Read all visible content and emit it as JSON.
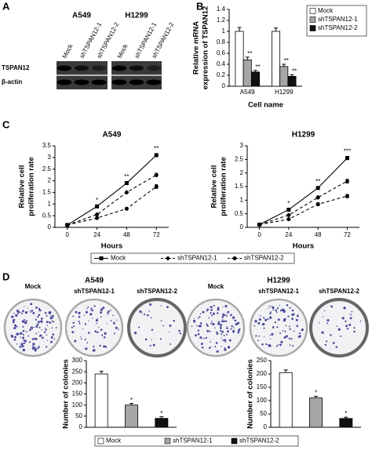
{
  "panel_labels": [
    "A",
    "B",
    "C",
    "D"
  ],
  "blot": {
    "cell_lines": [
      "A549",
      "H1299"
    ],
    "lanes": [
      "Mock",
      "shTSPAN12-1",
      "shTSPAN12-2"
    ],
    "rows": [
      "TSPAN12",
      "β-actin"
    ]
  },
  "colony": {
    "cell_lines": [
      "A549",
      "H1299"
    ],
    "conditions": [
      "Mock",
      "shTSPAN12-1",
      "shTSPAN12-2"
    ]
  },
  "chart_data": [
    {
      "type": "bar",
      "categories": [
        "A549",
        "H1299"
      ],
      "xlabel": "Cell name",
      "ylabel": [
        "Relative mRNA",
        "expression of TSPAN12"
      ],
      "ylim": [
        0,
        1.4
      ],
      "yticks": [
        0,
        0.2,
        0.4,
        0.6,
        0.8,
        1,
        1.2,
        1.4
      ],
      "legend": "right",
      "series": [
        {
          "name": "Mock",
          "color": "#ffffff",
          "values": [
            1.0,
            1.0
          ],
          "errors": [
            0.07,
            0.06
          ]
        },
        {
          "name": "shTSPAN12-1",
          "color": "#a6a6a6",
          "values": [
            0.48,
            0.36
          ],
          "errors": [
            0.05,
            0.04
          ],
          "significance": [
            "**",
            "**"
          ]
        },
        {
          "name": "shTSPAN12-2",
          "color": "#111111",
          "values": [
            0.26,
            0.18
          ],
          "errors": [
            0.03,
            0.03
          ],
          "significance": [
            "**",
            "**"
          ]
        }
      ]
    },
    {
      "type": "line",
      "title": "A549",
      "x": [
        0,
        24,
        48,
        72
      ],
      "xlim": [
        -10,
        82
      ],
      "xticks": [
        0,
        24,
        48,
        72
      ],
      "xlabel": "Hours",
      "ylabel": [
        "Relative cell",
        "proliferation rate"
      ],
      "ylim": [
        0,
        3.5
      ],
      "yticks": [
        0,
        0.5,
        1,
        1.5,
        2,
        2.5,
        3,
        3.5
      ],
      "legend": "bottom",
      "significance": [
        null,
        "*",
        "**",
        "**"
      ],
      "series": [
        {
          "name": "Mock",
          "color": "#000000",
          "dash": "solid",
          "marker": "square",
          "values": [
            0.1,
            0.9,
            1.9,
            3.1
          ],
          "errors": [
            0.02,
            0.05,
            0.06,
            0.06
          ]
        },
        {
          "name": "shTSPAN12-1",
          "color": "#000000",
          "dash": "dashed",
          "marker": "diamond",
          "values": [
            0.1,
            0.55,
            1.5,
            2.25
          ],
          "errors": [
            0.02,
            0.05,
            0.05,
            0.07
          ]
        },
        {
          "name": "shTSPAN12-2",
          "color": "#000000",
          "dash": "dashed",
          "marker": "circle",
          "values": [
            0.1,
            0.4,
            0.8,
            1.75
          ],
          "errors": [
            0.02,
            0.04,
            0.05,
            0.08
          ]
        }
      ]
    },
    {
      "type": "line",
      "title": "H1299",
      "x": [
        0,
        24,
        48,
        72
      ],
      "xlim": [
        -10,
        82
      ],
      "xticks": [
        0,
        24,
        48,
        72
      ],
      "xlabel": "Hours",
      "ylabel": [
        "Relative cell",
        "proliferation rate"
      ],
      "ylim": [
        0,
        3
      ],
      "yticks": [
        0,
        0.5,
        1,
        1.5,
        2,
        2.5,
        3
      ],
      "significance": [
        null,
        "*",
        "**",
        "***"
      ],
      "series": [
        {
          "name": "Mock",
          "color": "#000000",
          "dash": "solid",
          "marker": "square",
          "values": [
            0.1,
            0.65,
            1.45,
            2.55
          ],
          "errors": [
            0.02,
            0.05,
            0.05,
            0.06
          ]
        },
        {
          "name": "shTSPAN12-1",
          "color": "#000000",
          "dash": "dashed",
          "marker": "diamond",
          "values": [
            0.1,
            0.45,
            1.1,
            1.7
          ],
          "errors": [
            0.02,
            0.04,
            0.05,
            0.07
          ]
        },
        {
          "name": "shTSPAN12-2",
          "color": "#000000",
          "dash": "dashed",
          "marker": "circle",
          "values": [
            0.1,
            0.3,
            0.85,
            1.15
          ],
          "errors": [
            0.02,
            0.04,
            0.05,
            0.06
          ]
        }
      ]
    },
    {
      "type": "bar",
      "ylabel": [
        "Number of colonies"
      ],
      "ylim": [
        0,
        300
      ],
      "yticks": [
        0,
        50,
        100,
        150,
        200,
        250,
        300
      ],
      "legend": "bottom",
      "series": [
        {
          "name": "Mock",
          "color": "#ffffff",
          "values": [
            240
          ],
          "errors": [
            12
          ]
        },
        {
          "name": "shTSPAN12-1",
          "color": "#a6a6a6",
          "values": [
            100
          ],
          "errors": [
            7
          ],
          "significance": [
            "*"
          ]
        },
        {
          "name": "shTSPAN12-2",
          "color": "#111111",
          "values": [
            40
          ],
          "errors": [
            7
          ],
          "significance": [
            "*"
          ]
        }
      ]
    },
    {
      "type": "bar",
      "ylabel": [
        "Number of colonies"
      ],
      "ylim": [
        0,
        250
      ],
      "yticks": [
        0,
        50,
        100,
        150,
        200,
        250
      ],
      "series": [
        {
          "name": "Mock",
          "color": "#ffffff",
          "values": [
            205
          ],
          "errors": [
            10
          ]
        },
        {
          "name": "shTSPAN12-1",
          "color": "#a6a6a6",
          "values": [
            110
          ],
          "errors": [
            6
          ],
          "significance": [
            "*"
          ]
        },
        {
          "name": "shTSPAN12-2",
          "color": "#111111",
          "values": [
            33
          ],
          "errors": [
            5
          ],
          "significance": [
            "*"
          ]
        }
      ]
    }
  ]
}
